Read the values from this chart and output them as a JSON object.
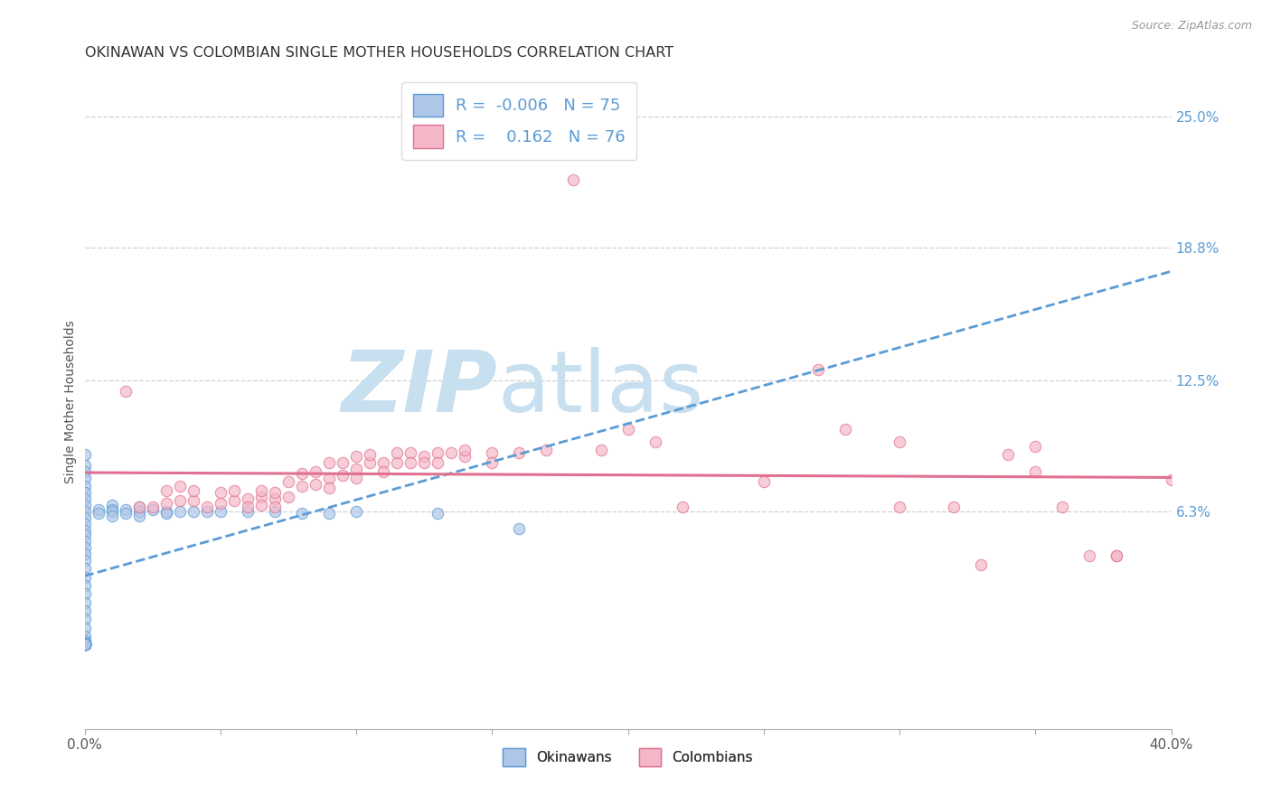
{
  "title": "OKINAWAN VS COLOMBIAN SINGLE MOTHER HOUSEHOLDS CORRELATION CHART",
  "source": "Source: ZipAtlas.com",
  "ylabel": "Single Mother Households",
  "x_min": 0.0,
  "x_max": 0.4,
  "y_min": -0.04,
  "y_max": 0.27,
  "y_tick_vals_right": [
    0.25,
    0.188,
    0.125,
    0.063
  ],
  "y_tick_labels_right": [
    "25.0%",
    "18.8%",
    "12.5%",
    "6.3%"
  ],
  "okinawan_color": "#aec6e8",
  "okinawan_edge": "#5b9bd5",
  "colombian_color": "#f4b8c8",
  "colombian_edge": "#e07090",
  "okinawan_R": -0.006,
  "okinawan_N": 75,
  "colombian_R": 0.162,
  "colombian_N": 76,
  "trend_okinawan_color": "#5b9bd5",
  "trend_colombian_color": "#e07090",
  "background_color": "#ffffff",
  "grid_color": "#cccccc",
  "watermark_zip": "ZIP",
  "watermark_atlas": "atlas",
  "watermark_color_zip": "#c8dff0",
  "watermark_color_atlas": "#c8dff0",
  "okinawan_x": [
    0.0,
    0.0,
    0.0,
    0.0,
    0.0,
    0.0,
    0.0,
    0.0,
    0.0,
    0.0,
    0.0,
    0.0,
    0.0,
    0.0,
    0.0,
    0.0,
    0.0,
    0.0,
    0.0,
    0.0,
    0.0,
    0.0,
    0.0,
    0.0,
    0.0,
    0.0,
    0.0,
    0.0,
    0.0,
    0.0,
    0.0,
    0.0,
    0.0,
    0.0,
    0.0,
    0.0,
    0.0,
    0.0,
    0.0,
    0.0,
    0.0,
    0.0,
    0.0,
    0.0,
    0.0,
    0.0,
    0.0,
    0.0,
    0.0,
    0.0,
    0.005,
    0.005,
    0.01,
    0.01,
    0.01,
    0.01,
    0.015,
    0.015,
    0.02,
    0.02,
    0.02,
    0.025,
    0.03,
    0.03,
    0.035,
    0.04,
    0.045,
    0.05,
    0.06,
    0.07,
    0.08,
    0.09,
    0.1,
    0.13,
    0.16
  ],
  "okinawan_y": [
    0.09,
    0.085,
    0.082,
    0.079,
    0.075,
    0.072,
    0.069,
    0.066,
    0.063,
    0.06,
    0.057,
    0.054,
    0.052,
    0.049,
    0.046,
    0.043,
    0.04,
    0.036,
    0.032,
    0.028,
    0.024,
    0.02,
    0.016,
    0.012,
    0.008,
    0.004,
    0.002,
    0.001,
    0.0,
    0.0,
    0.0,
    0.0,
    0.0,
    0.0,
    0.0,
    0.0,
    0.0,
    0.0,
    0.0,
    0.0,
    0.0,
    0.0,
    0.0,
    0.0,
    0.0,
    0.0,
    0.0,
    0.0,
    0.0,
    0.0,
    0.064,
    0.062,
    0.066,
    0.064,
    0.063,
    0.061,
    0.064,
    0.062,
    0.065,
    0.063,
    0.061,
    0.064,
    0.063,
    0.062,
    0.063,
    0.063,
    0.063,
    0.063,
    0.063,
    0.063,
    0.062,
    0.062,
    0.063,
    0.062,
    0.055
  ],
  "colombian_x": [
    0.015,
    0.02,
    0.025,
    0.03,
    0.03,
    0.035,
    0.035,
    0.04,
    0.04,
    0.045,
    0.05,
    0.05,
    0.055,
    0.055,
    0.06,
    0.06,
    0.065,
    0.065,
    0.065,
    0.07,
    0.07,
    0.07,
    0.075,
    0.075,
    0.08,
    0.08,
    0.085,
    0.085,
    0.09,
    0.09,
    0.09,
    0.095,
    0.095,
    0.1,
    0.1,
    0.1,
    0.105,
    0.105,
    0.11,
    0.11,
    0.115,
    0.115,
    0.12,
    0.12,
    0.125,
    0.125,
    0.13,
    0.13,
    0.135,
    0.14,
    0.14,
    0.15,
    0.15,
    0.16,
    0.17,
    0.18,
    0.19,
    0.2,
    0.21,
    0.22,
    0.25,
    0.27,
    0.28,
    0.3,
    0.32,
    0.34,
    0.35,
    0.36,
    0.38,
    0.3,
    0.35,
    0.38,
    0.4,
    0.42,
    0.37,
    0.33
  ],
  "colombian_y": [
    0.12,
    0.065,
    0.065,
    0.067,
    0.073,
    0.068,
    0.075,
    0.068,
    0.073,
    0.065,
    0.067,
    0.072,
    0.068,
    0.073,
    0.069,
    0.065,
    0.07,
    0.066,
    0.073,
    0.069,
    0.065,
    0.072,
    0.07,
    0.077,
    0.081,
    0.075,
    0.082,
    0.076,
    0.086,
    0.079,
    0.074,
    0.086,
    0.08,
    0.089,
    0.083,
    0.079,
    0.086,
    0.09,
    0.086,
    0.082,
    0.086,
    0.091,
    0.091,
    0.086,
    0.089,
    0.086,
    0.091,
    0.086,
    0.091,
    0.089,
    0.092,
    0.091,
    0.086,
    0.091,
    0.092,
    0.22,
    0.092,
    0.102,
    0.096,
    0.065,
    0.077,
    0.13,
    0.102,
    0.065,
    0.065,
    0.09,
    0.082,
    0.065,
    0.042,
    0.096,
    0.094,
    0.042,
    0.078,
    0.076,
    0.042,
    0.038
  ]
}
